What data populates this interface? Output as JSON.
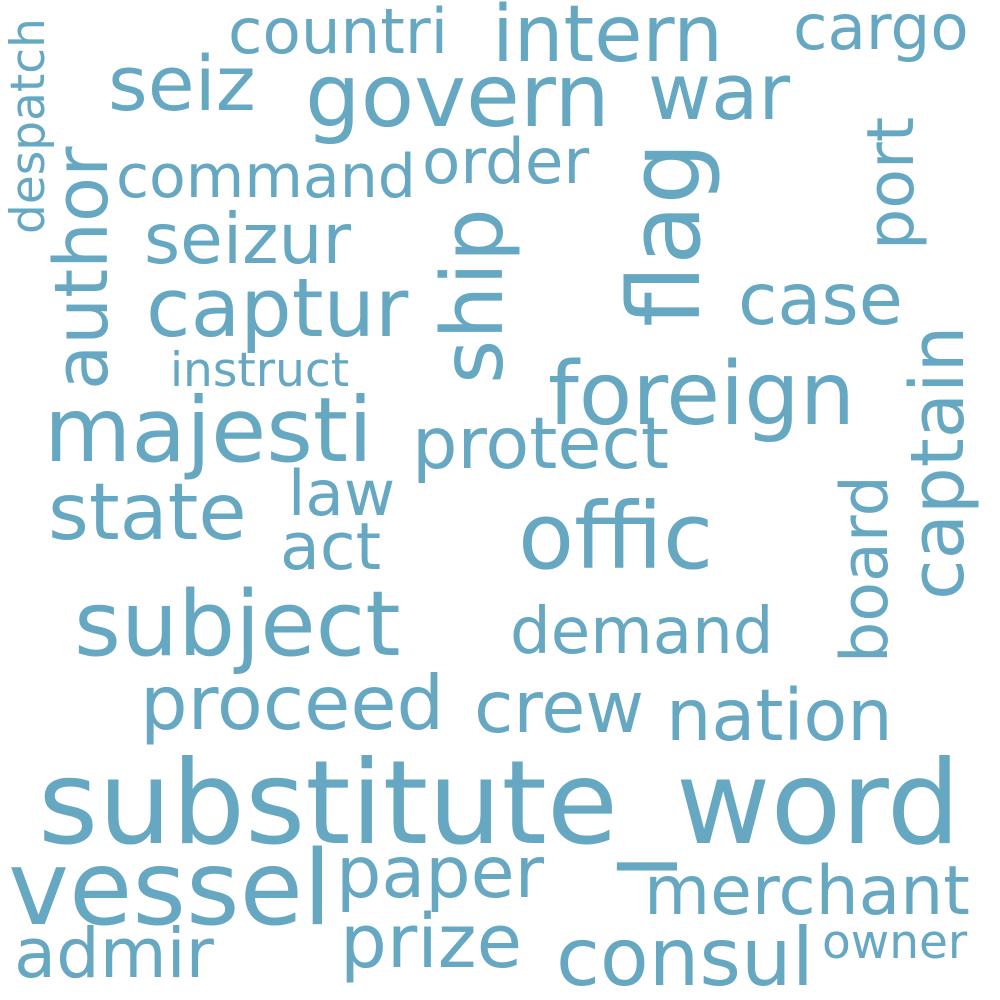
{
  "word_cloud": {
    "color": "#66a7c2",
    "words": [
      {
        "id": "substitute_word",
        "text": "substitute_word",
        "orientation": "horizontal"
      },
      {
        "id": "vessel",
        "text": "vessel",
        "orientation": "horizontal"
      },
      {
        "id": "govern",
        "text": "govern",
        "orientation": "horizontal"
      },
      {
        "id": "war",
        "text": "war",
        "orientation": "horizontal"
      },
      {
        "id": "seiz",
        "text": "seiz",
        "orientation": "horizontal"
      },
      {
        "id": "countri",
        "text": "countri",
        "orientation": "horizontal"
      },
      {
        "id": "intern",
        "text": "intern",
        "orientation": "horizontal"
      },
      {
        "id": "cargo",
        "text": "cargo",
        "orientation": "horizontal"
      },
      {
        "id": "despatch",
        "text": "despatch",
        "orientation": "vertical"
      },
      {
        "id": "command",
        "text": "command",
        "orientation": "horizontal"
      },
      {
        "id": "order",
        "text": "order",
        "orientation": "horizontal"
      },
      {
        "id": "flag",
        "text": "flag",
        "orientation": "vertical"
      },
      {
        "id": "port",
        "text": "port",
        "orientation": "vertical"
      },
      {
        "id": "author",
        "text": "author",
        "orientation": "vertical"
      },
      {
        "id": "seizur",
        "text": "seizur",
        "orientation": "horizontal"
      },
      {
        "id": "ship",
        "text": "ship",
        "orientation": "vertical"
      },
      {
        "id": "captur",
        "text": "captur",
        "orientation": "horizontal"
      },
      {
        "id": "case",
        "text": "case",
        "orientation": "horizontal"
      },
      {
        "id": "instruct",
        "text": "instruct",
        "orientation": "horizontal"
      },
      {
        "id": "foreign",
        "text": "foreign",
        "orientation": "horizontal"
      },
      {
        "id": "captain",
        "text": "captain",
        "orientation": "vertical"
      },
      {
        "id": "majesti",
        "text": "majesti",
        "orientation": "horizontal"
      },
      {
        "id": "protect",
        "text": "protect",
        "orientation": "horizontal"
      },
      {
        "id": "law",
        "text": "law",
        "orientation": "horizontal"
      },
      {
        "id": "state",
        "text": "state",
        "orientation": "horizontal"
      },
      {
        "id": "act",
        "text": "act",
        "orientation": "horizontal"
      },
      {
        "id": "offic",
        "text": "offic",
        "orientation": "horizontal"
      },
      {
        "id": "board",
        "text": "board",
        "orientation": "vertical"
      },
      {
        "id": "subject",
        "text": "subject",
        "orientation": "horizontal"
      },
      {
        "id": "demand",
        "text": "demand",
        "orientation": "horizontal"
      },
      {
        "id": "proceed",
        "text": "proceed",
        "orientation": "horizontal"
      },
      {
        "id": "crew",
        "text": "crew",
        "orientation": "horizontal"
      },
      {
        "id": "nation",
        "text": "nation",
        "orientation": "horizontal"
      },
      {
        "id": "paper",
        "text": "paper",
        "orientation": "horizontal"
      },
      {
        "id": "merchant",
        "text": "merchant",
        "orientation": "horizontal"
      },
      {
        "id": "admir",
        "text": "admir",
        "orientation": "horizontal"
      },
      {
        "id": "prize",
        "text": "prize",
        "orientation": "horizontal"
      },
      {
        "id": "consul",
        "text": "consul",
        "orientation": "horizontal"
      },
      {
        "id": "owner",
        "text": "owner",
        "orientation": "horizontal"
      }
    ]
  }
}
